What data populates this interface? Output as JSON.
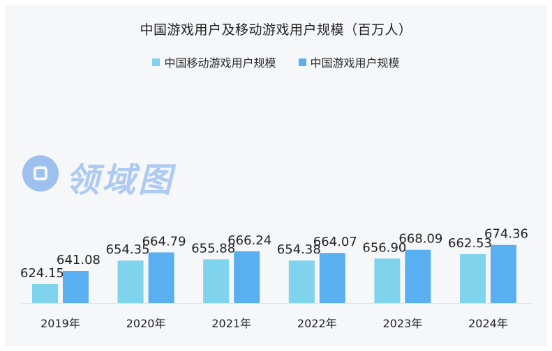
{
  "chart_data": {
    "type": "bar",
    "title": "中国游戏用户及移动游戏用户规模（百万人）",
    "categories": [
      "2019年",
      "2020年",
      "2021年",
      "2022年",
      "2023年",
      "2024年"
    ],
    "series": [
      {
        "name": "中国移动游戏用户规模",
        "color": "#7fd3ec",
        "values": [
          624.15,
          654.35,
          655.88,
          654.38,
          656.9,
          662.53
        ],
        "labels": [
          "624.15",
          "654.35",
          "655.88",
          "654.38",
          "656.90",
          "662.53"
        ]
      },
      {
        "name": "中国游戏用户规模",
        "color": "#5aaff0",
        "values": [
          641.08,
          664.79,
          666.24,
          664.07,
          668.09,
          674.36
        ],
        "labels": [
          "641.08",
          "664.79",
          "666.24",
          "664.07",
          "668.09",
          "674.36"
        ]
      }
    ],
    "grid": false,
    "legend_position": "top"
  },
  "watermark": {
    "icon": "watermark-logo-icon",
    "text": "领域图"
  }
}
